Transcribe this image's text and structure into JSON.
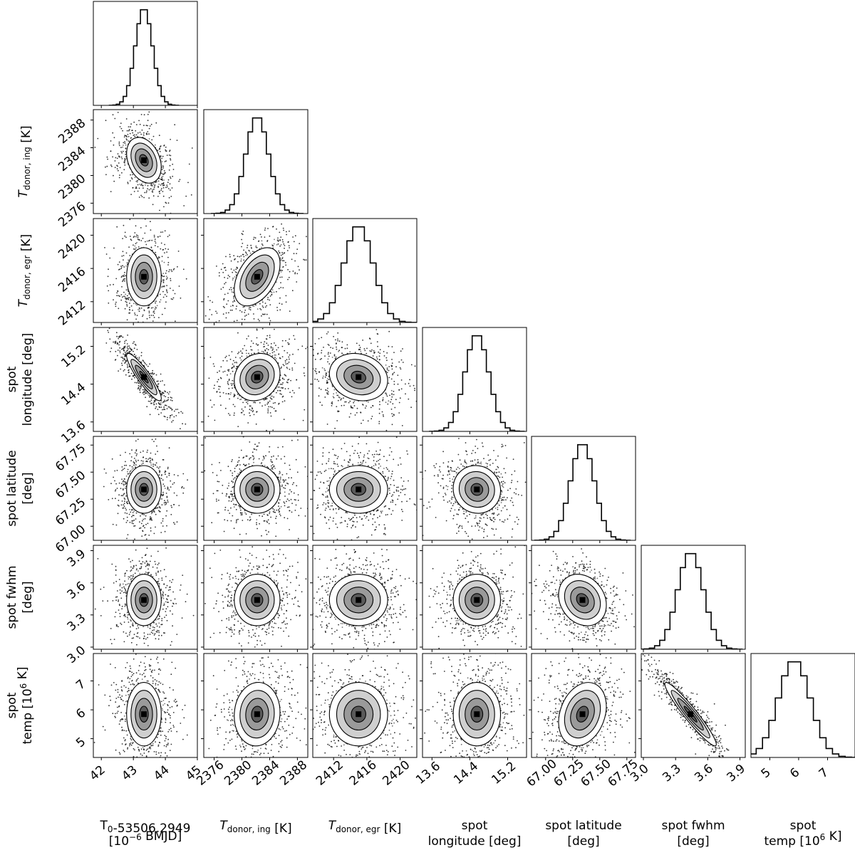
{
  "chart_data": {
    "type": "corner",
    "params": [
      {
        "key": "t0",
        "label_parts": [
          {
            "t": "T"
          },
          {
            "t": "0",
            "sub": true
          },
          {
            "t": "-53506.2949"
          }
        ],
        "label_line2": [
          {
            "t": "[10"
          },
          {
            "t": "−6",
            "sup": true
          },
          {
            "t": " BMJD]"
          }
        ],
        "mean": 43.33,
        "sd": 0.27,
        "range": [
          41.75,
          45.0
        ],
        "ticks": [
          42,
          43,
          44,
          45
        ],
        "tick_labels": [
          "42",
          "43",
          "44",
          "45"
        ]
      },
      {
        "key": "tdonor_ing",
        "label_parts": [
          {
            "t": "T",
            "it": true
          },
          {
            "t": "donor, ing",
            "sub": true
          },
          {
            "t": " [K]"
          }
        ],
        "label_line2": [],
        "mean": 2382.2,
        "sd": 1.65,
        "range": [
          2374.5,
          2389.5
        ],
        "ticks": [
          2376,
          2380,
          2384,
          2388
        ],
        "tick_labels": [
          "2376",
          "2380",
          "2384",
          "2388"
        ]
      },
      {
        "key": "tdonor_egr",
        "label_parts": [
          {
            "t": "T",
            "it": true
          },
          {
            "t": "donor, egr",
            "sub": true
          },
          {
            "t": " [K]"
          }
        ],
        "label_line2": [],
        "mean": 2415.0,
        "sd": 1.75,
        "range": [
          2409.5,
          2422.0
        ],
        "ticks": [
          2412,
          2416,
          2420
        ],
        "tick_labels": [
          "2412",
          "2416",
          "2420"
        ]
      },
      {
        "key": "spot_lon",
        "label_parts": [
          {
            "t": "spot"
          }
        ],
        "label_line2": [
          {
            "t": "longitude [deg]"
          }
        ],
        "mean": 14.55,
        "sd": 0.25,
        "range": [
          13.4,
          15.6
        ],
        "ticks": [
          13.6,
          14.4,
          15.2
        ],
        "tick_labels": [
          "13.6",
          "14.4",
          "15.2"
        ]
      },
      {
        "key": "spot_lat",
        "label_parts": [
          {
            "t": "spot latitude"
          }
        ],
        "label_line2": [
          {
            "t": "[deg]"
          }
        ],
        "mean": 67.34,
        "sd": 0.11,
        "range": [
          66.87,
          67.83
        ],
        "ticks": [
          67.0,
          67.25,
          67.5,
          67.75
        ],
        "tick_labels": [
          "67.00",
          "67.25",
          "67.50",
          "67.75"
        ]
      },
      {
        "key": "spot_fwhm",
        "label_parts": [
          {
            "t": "spot fwhm"
          }
        ],
        "label_line2": [
          {
            "t": "[deg]"
          }
        ],
        "mean": 3.44,
        "sd": 0.12,
        "range": [
          2.98,
          3.95
        ],
        "ticks": [
          3.0,
          3.3,
          3.6,
          3.9
        ],
        "tick_labels": [
          "3.0",
          "3.3",
          "3.6",
          "3.9"
        ]
      },
      {
        "key": "spot_temp",
        "label_parts": [
          {
            "t": "spot"
          }
        ],
        "label_line2": [
          {
            "t": "temp [10"
          },
          {
            "t": "6",
            "sup": true
          },
          {
            "t": " K]"
          }
        ],
        "mean": 5.85,
        "sd": 0.55,
        "range": [
          4.35,
          7.95
        ],
        "ticks": [
          5,
          6,
          7
        ],
        "tick_labels": [
          "5",
          "6",
          "7"
        ]
      }
    ],
    "correlations": [
      {
        "i": 1,
        "j": 0,
        "rho": -0.3
      },
      {
        "i": 2,
        "j": 1,
        "rho": 0.45
      },
      {
        "i": 3,
        "j": 0,
        "rho": -0.9
      },
      {
        "i": 3,
        "j": 1,
        "rho": 0.15
      },
      {
        "i": 3,
        "j": 2,
        "rho": -0.15
      },
      {
        "i": 4,
        "j": 3,
        "rho": -0.05
      },
      {
        "i": 5,
        "j": 4,
        "rho": -0.2
      },
      {
        "i": 6,
        "j": 1,
        "rho": 0.05
      },
      {
        "i": 6,
        "j": 4,
        "rho": 0.25
      },
      {
        "i": 6,
        "j": 5,
        "rho": -0.95
      }
    ],
    "contour_levels_sigma": [
      0.5,
      1.0,
      1.5,
      2.0
    ],
    "histogram_bins": 20,
    "scatter_points_per_panel": 900
  }
}
